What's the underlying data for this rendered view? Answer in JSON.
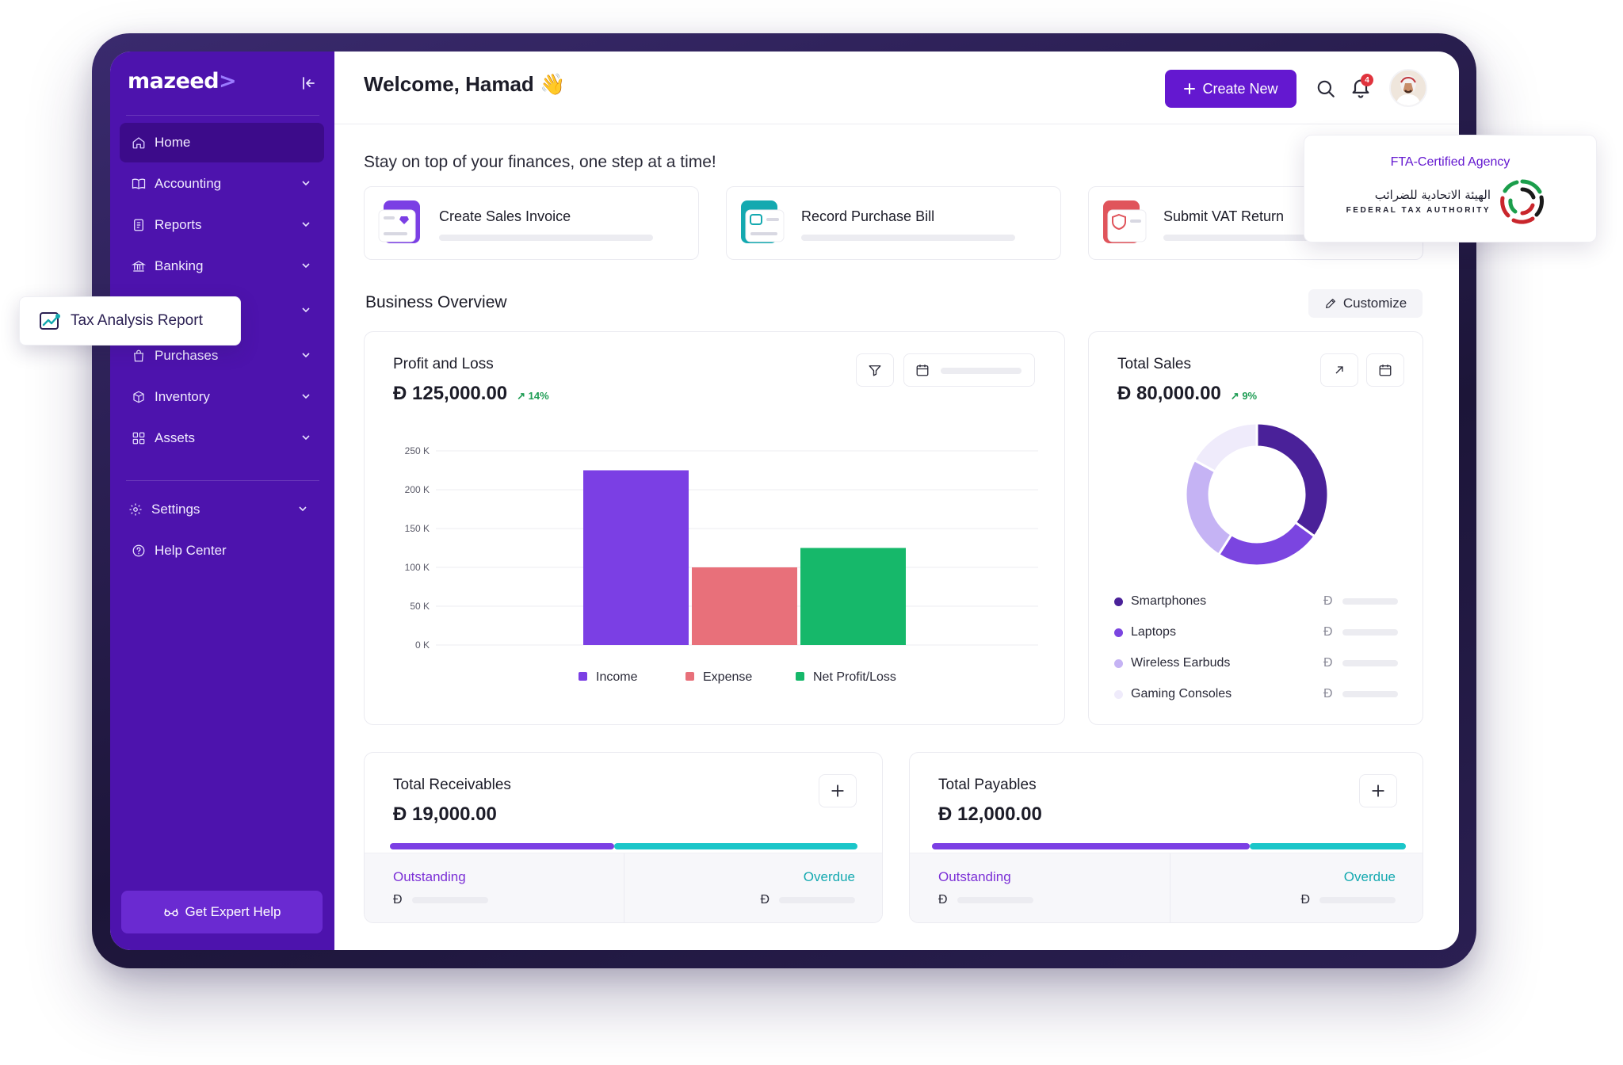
{
  "brand": {
    "logo": "mazeed",
    "logo_arrow": ">",
    "accent": "#6418d0",
    "sidebar_bg": "#4d13ad"
  },
  "sidebar": {
    "items": [
      {
        "label": "Home",
        "icon": "home-icon",
        "active": true
      },
      {
        "label": "Accounting",
        "icon": "book-icon"
      },
      {
        "label": "Reports",
        "icon": "document-icon"
      },
      {
        "label": "Banking",
        "icon": "bank-icon"
      },
      {
        "label": "Purchases",
        "icon": "bag-icon"
      },
      {
        "label": "Inventory",
        "icon": "box-icon"
      },
      {
        "label": "Assets",
        "icon": "grid-icon"
      },
      {
        "label": "Settings",
        "icon": "gear-icon"
      },
      {
        "label": "Help Center",
        "icon": "help-icon"
      }
    ],
    "expert_help": "Get Expert Help"
  },
  "floating_tag": {
    "label": "Tax Analysis Report",
    "icon": "chart-up-icon"
  },
  "header": {
    "welcome": "Welcome, Hamad",
    "wave": "👋",
    "create_new": "Create New",
    "notification_count": "4"
  },
  "tagline": "Stay on top of your finances, one step at a time!",
  "quick_actions": [
    {
      "label": "Create Sales Invoice",
      "color": "#7b3fe4"
    },
    {
      "label": "Record Purchase Bill",
      "color": "#14a9b0"
    },
    {
      "label": "Submit VAT Return",
      "color": "#e0545b"
    }
  ],
  "fta": {
    "title": "FTA-Certified Agency",
    "arabic": "الهيئة الاتحادية للضرائب",
    "english": "FEDERAL TAX AUTHORITY"
  },
  "overview": {
    "title": "Business Overview",
    "customize": "Customize"
  },
  "profit_loss": {
    "title": "Profit and Loss",
    "currency": "Ð",
    "amount": "125,000.00",
    "change": "14%"
  },
  "chart_data": [
    {
      "type": "bar",
      "categories": [
        "Income",
        "Expense",
        "Net Profit/Loss"
      ],
      "values": [
        225000,
        100000,
        125000
      ],
      "colors": [
        "#7b3fe4",
        "#e8707a",
        "#16b86a"
      ],
      "yticks": [
        "250 K",
        "200 K",
        "150 K",
        "100 K",
        "50 K",
        "0 K"
      ],
      "ylim": [
        0,
        250000
      ],
      "legend": [
        "Income",
        "Expense",
        "Net Profit/Loss"
      ],
      "legend_position": "bottom",
      "grid": true
    },
    {
      "type": "pie",
      "labels": [
        "Smartphones",
        "Laptops",
        "Wireless Earbuds",
        "Gaming Consoles"
      ],
      "values": [
        35,
        24,
        24,
        17
      ],
      "colors": [
        "#4a2199",
        "#7b45e0",
        "#c5b3f4",
        "#efebfb"
      ],
      "legend_position": "bottom"
    }
  ],
  "total_sales": {
    "title": "Total Sales",
    "currency": "Ð",
    "amount": "80,000.00",
    "change": "9%"
  },
  "receivables": {
    "title": "Total Receivables",
    "currency": "Ð",
    "amount": "19,000.00",
    "outstanding": "Outstanding",
    "overdue": "Overdue",
    "outstanding_share": 0.48
  },
  "payables": {
    "title": "Total Payables",
    "currency": "Ð",
    "amount": "12,000.00",
    "outstanding": "Outstanding",
    "overdue": "Overdue",
    "outstanding_share": 0.67
  }
}
